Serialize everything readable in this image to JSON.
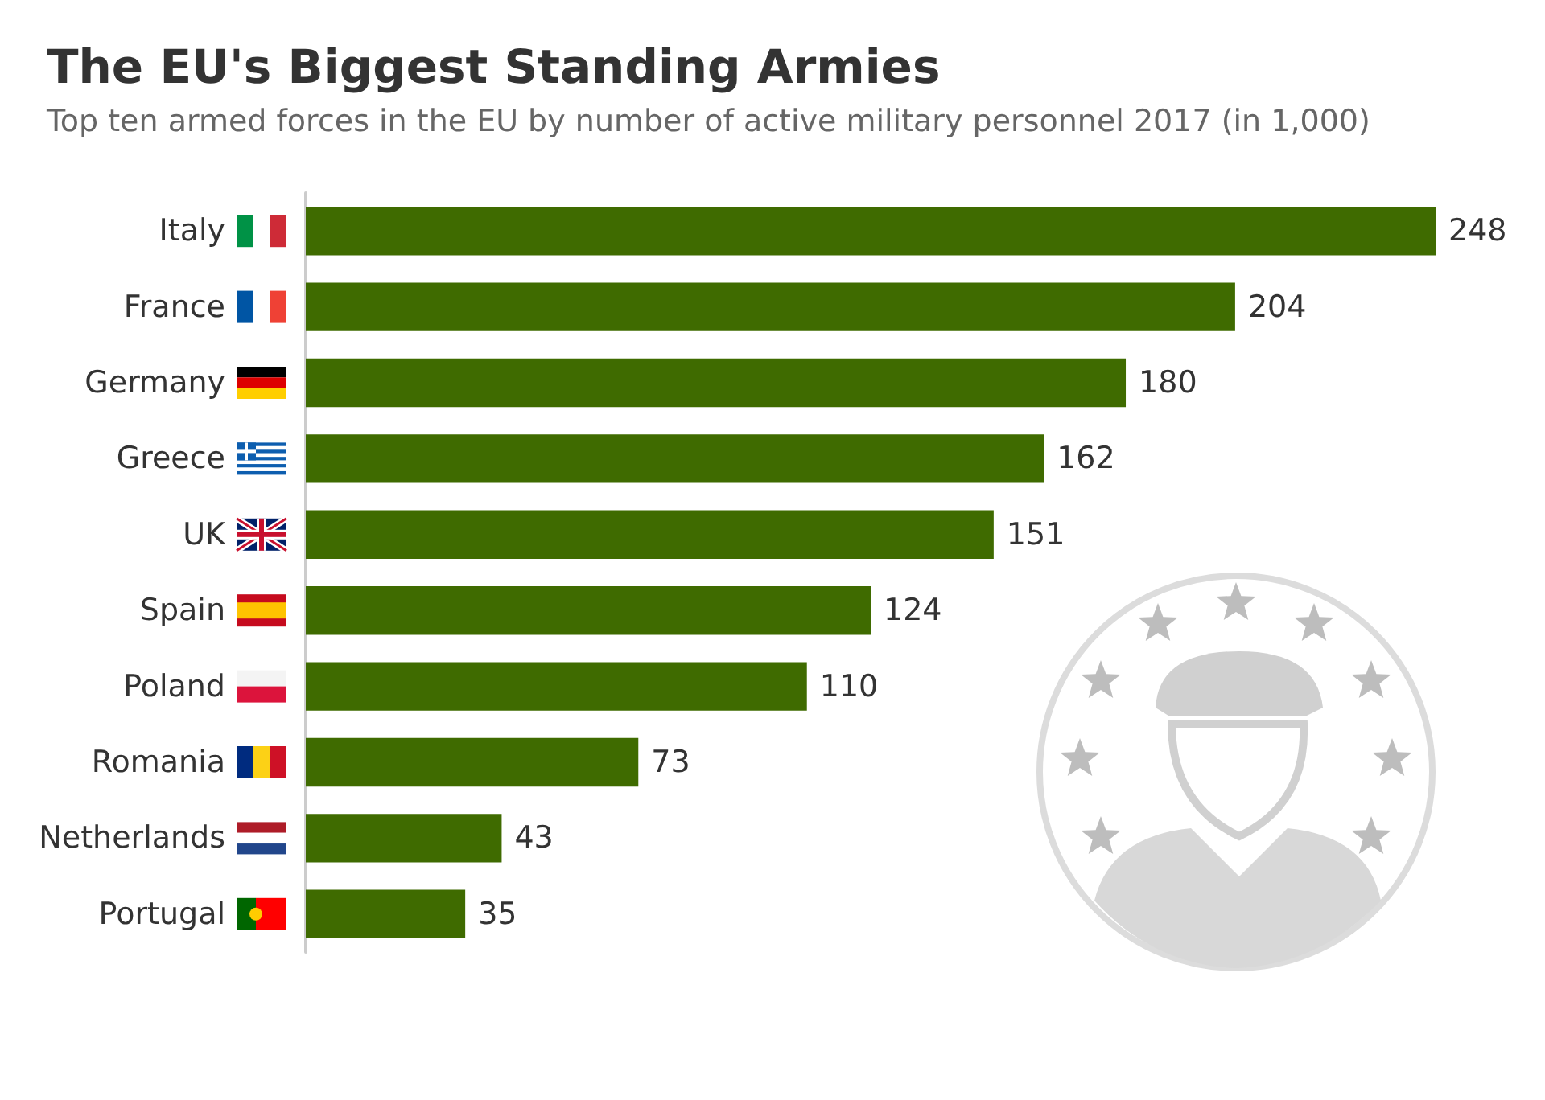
{
  "chart_data": {
    "type": "bar",
    "orientation": "horizontal",
    "title": "The EU's Biggest Standing Armies",
    "subtitle": "Top ten armed forces in the EU by number of active military personnel 2017 (in 1,000)",
    "categories": [
      "Italy",
      "France",
      "Germany",
      "Greece",
      "UK",
      "Spain",
      "Poland",
      "Romania",
      "Netherlands",
      "Portugal"
    ],
    "values": [
      248,
      204,
      180,
      162,
      151,
      124,
      110,
      73,
      43,
      35
    ],
    "color": "#3f6b00",
    "data_labels": true
  }
}
